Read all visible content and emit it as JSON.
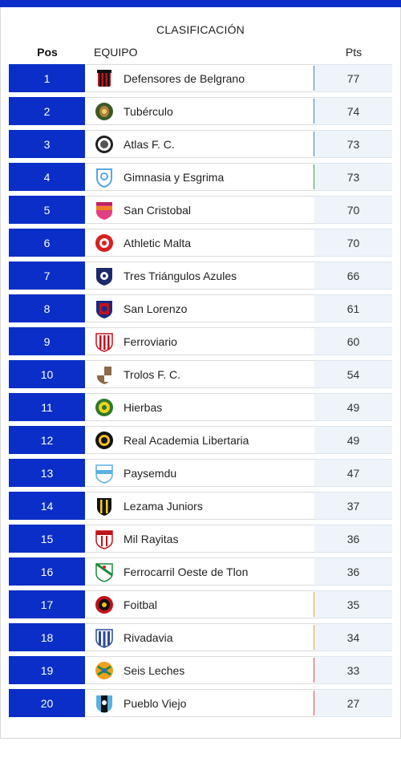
{
  "title": "CLASIFICACIÓN",
  "headers": {
    "pos": "Pos",
    "team": "EQUIPO",
    "pts": "Pts"
  },
  "colors": {
    "accent": "#0a2ec7",
    "zone_blue": "#3a86c8",
    "zone_green": "#3aa04a",
    "zone_orange": "#f0a030",
    "zone_red": "#d9534f"
  },
  "rows": [
    {
      "pos": "1",
      "team": "Defensores de Belgrano",
      "pts": "77",
      "zone": "blue",
      "icon": "defensores-crest-icon"
    },
    {
      "pos": "2",
      "team": "Tubérculo",
      "pts": "74",
      "zone": "blue",
      "icon": "tuberculo-crest-icon"
    },
    {
      "pos": "3",
      "team": "Atlas F. C.",
      "pts": "73",
      "zone": "blue",
      "icon": "atlas-crest-icon"
    },
    {
      "pos": "4",
      "team": "Gimnasia y Esgrima",
      "pts": "73",
      "zone": "green",
      "icon": "gimnasia-crest-icon"
    },
    {
      "pos": "5",
      "team": "San Cristobal",
      "pts": "70",
      "zone": "",
      "icon": "san-cristobal-crest-icon"
    },
    {
      "pos": "6",
      "team": "Athletic Malta",
      "pts": "70",
      "zone": "",
      "icon": "athletic-malta-crest-icon"
    },
    {
      "pos": "7",
      "team": "Tres Triángulos Azules",
      "pts": "66",
      "zone": "",
      "icon": "tres-triangulos-crest-icon"
    },
    {
      "pos": "8",
      "team": "San Lorenzo",
      "pts": "61",
      "zone": "",
      "icon": "san-lorenzo-crest-icon"
    },
    {
      "pos": "9",
      "team": "Ferroviario",
      "pts": "60",
      "zone": "",
      "icon": "ferroviario-crest-icon"
    },
    {
      "pos": "10",
      "team": "Trolos F. C.",
      "pts": "54",
      "zone": "",
      "icon": "trolos-crest-icon"
    },
    {
      "pos": "11",
      "team": "Hierbas",
      "pts": "49",
      "zone": "",
      "icon": "hierbas-crest-icon"
    },
    {
      "pos": "12",
      "team": "Real Academia Libertaria",
      "pts": "49",
      "zone": "",
      "icon": "real-academia-crest-icon"
    },
    {
      "pos": "13",
      "team": "Paysemdu",
      "pts": "47",
      "zone": "",
      "icon": "paysemdu-crest-icon"
    },
    {
      "pos": "14",
      "team": "Lezama Juniors",
      "pts": "37",
      "zone": "",
      "icon": "lezama-crest-icon"
    },
    {
      "pos": "15",
      "team": "Mil Rayitas",
      "pts": "36",
      "zone": "",
      "icon": "mil-rayitas-crest-icon"
    },
    {
      "pos": "16",
      "team": "Ferrocarril Oeste de Tlon",
      "pts": "36",
      "zone": "",
      "icon": "ferrocarril-crest-icon"
    },
    {
      "pos": "17",
      "team": "Foitbal",
      "pts": "35",
      "zone": "orange",
      "icon": "foitbal-crest-icon"
    },
    {
      "pos": "18",
      "team": "Rivadavia",
      "pts": "34",
      "zone": "orange",
      "icon": "rivadavia-crest-icon"
    },
    {
      "pos": "19",
      "team": "Seis Leches",
      "pts": "33",
      "zone": "red",
      "icon": "seis-leches-crest-icon"
    },
    {
      "pos": "20",
      "team": "Pueblo Viejo",
      "pts": "27",
      "zone": "red",
      "icon": "pueblo-viejo-crest-icon"
    }
  ]
}
